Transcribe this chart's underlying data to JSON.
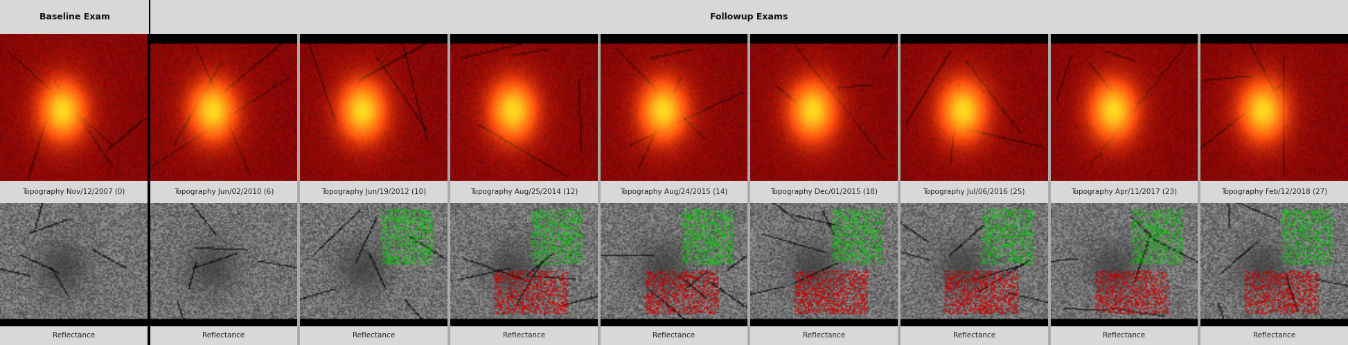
{
  "background_color": "#d8d8d8",
  "baseline_label": "Baseline Exam",
  "followup_label": "Followup Exams",
  "top_labels": [
    "Topography Nov/12/2007 (0)",
    "Topography Jun/02/2010 (6)",
    "Topography Jun/19/2012 (10)",
    "Topography Aug/25/2014 (12)",
    "Topography Aug/24/2015 (14)",
    "Topography Dec/01/2015 (18)",
    "Topography Jul/06/2016 (25)",
    "Topography Apr/11/2017 (23)",
    "Topography Feb/12/2018 (27)"
  ],
  "bottom_labels": [
    "Reflectance",
    "Reflectance",
    "Reflectance",
    "Reflectance",
    "Reflectance",
    "Reflectance",
    "Reflectance",
    "Reflectance",
    "Reflectance"
  ],
  "n_panels": 9,
  "label_fontsize": 7.5,
  "header_fontsize": 9,
  "fig_width": 19.46,
  "fig_height": 4.98
}
